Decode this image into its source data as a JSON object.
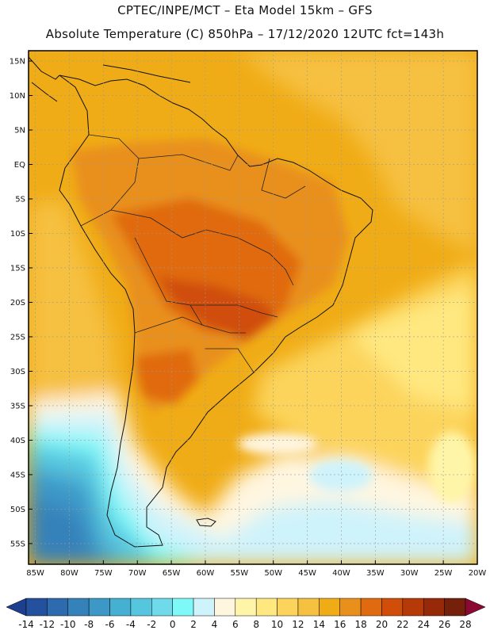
{
  "header": {
    "line1": "CPTEC/INPE/MCT –  Eta Model 15km – GFS",
    "line2": "Absolute Temperature (C) 850hPa – 17/12/2020 12UTC fct=143h"
  },
  "axes": {
    "lat_labels": [
      "15N",
      "10N",
      "5N",
      "EQ",
      "5S",
      "10S",
      "15S",
      "20S",
      "25S",
      "30S",
      "35S",
      "40S",
      "45S",
      "50S",
      "55S"
    ],
    "lon_labels": [
      "85W",
      "80W",
      "75W",
      "70W",
      "65W",
      "60W",
      "55W",
      "50W",
      "45W",
      "40W",
      "35W",
      "30W",
      "25W",
      "20W"
    ]
  },
  "colorbar": {
    "labels": [
      "-14",
      "-12",
      "-10",
      "-8",
      "-6",
      "-4",
      "-2",
      "0",
      "2",
      "4",
      "6",
      "8",
      "10",
      "12",
      "14",
      "16",
      "18",
      "20",
      "22",
      "24",
      "26",
      "28"
    ],
    "colors": [
      "#1e3f8e",
      "#24519e",
      "#2e6aae",
      "#3581ba",
      "#3d98c8",
      "#46b0d3",
      "#56c6df",
      "#6fdaea",
      "#7ff8f8",
      "#cff3fb",
      "#fff6e0",
      "#fff5a8",
      "#ffe880",
      "#fcd45c",
      "#f6c040",
      "#f0ac16",
      "#e9901c",
      "#e06a10",
      "#d04e0a",
      "#b63a08",
      "#962a08",
      "#74200a",
      "#8b0a33"
    ]
  },
  "colors": {
    "frame": "#000000",
    "grid": "#9a9a9a",
    "coast": "#111111"
  }
}
